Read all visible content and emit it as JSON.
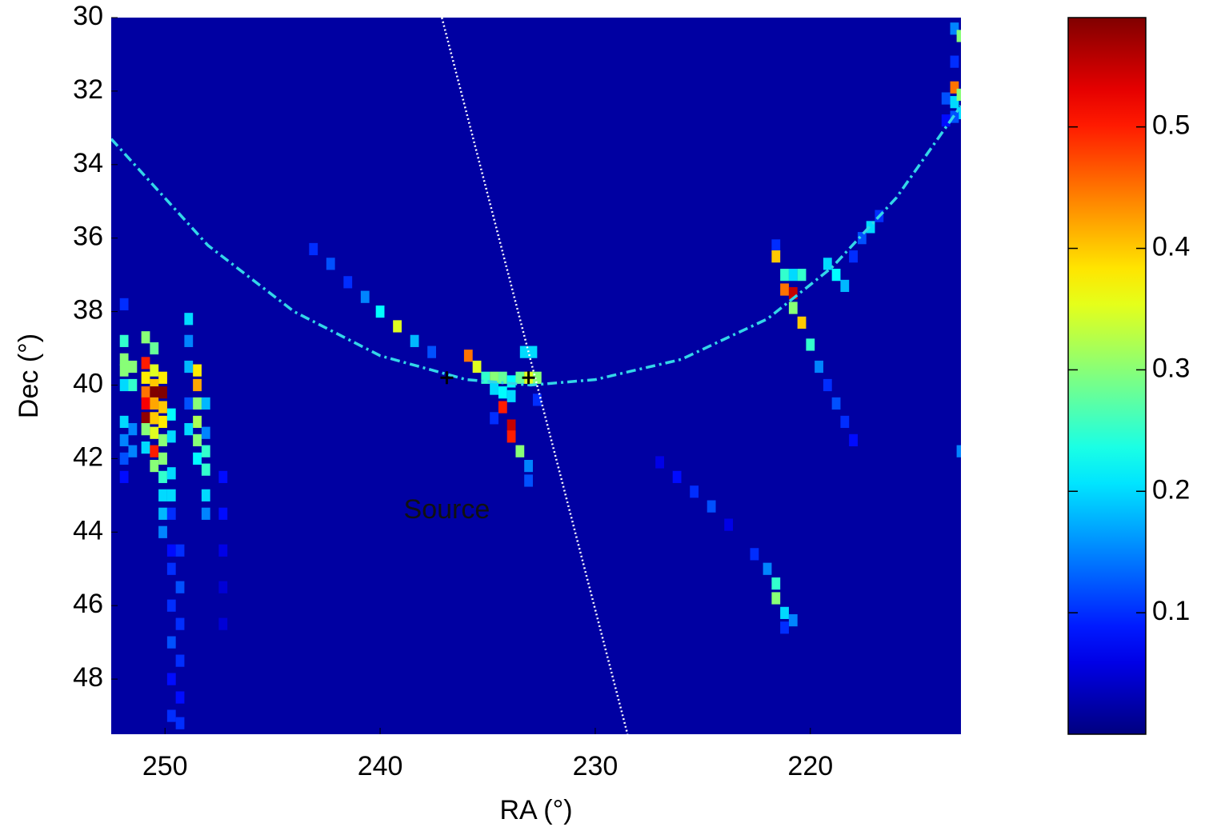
{
  "chart_data": {
    "type": "heatmap",
    "x_label": "RA (°)",
    "y_label": "Dec (°)",
    "xlim": [
      252.5,
      213
    ],
    "ylim": [
      30,
      49.5
    ],
    "xticks": [
      250,
      240,
      230,
      220
    ],
    "yticks": [
      30,
      32,
      34,
      36,
      38,
      40,
      42,
      44,
      46,
      48
    ],
    "clim": [
      0,
      0.59
    ],
    "cticks": [
      0.1,
      0.2,
      0.3,
      0.4,
      0.5
    ],
    "colormap": "jet",
    "background_value": 0.02,
    "cells": [
      [
        251.9,
        37.8,
        0.1
      ],
      [
        251.9,
        38.8,
        0.25
      ],
      [
        251.9,
        39.3,
        0.3
      ],
      [
        251.9,
        39.6,
        0.3
      ],
      [
        251.9,
        40,
        0.2
      ],
      [
        251.9,
        41,
        0.2
      ],
      [
        251.9,
        41.5,
        0.15
      ],
      [
        251.9,
        42,
        0.12
      ],
      [
        251.9,
        42.5,
        0.08
      ],
      [
        251.5,
        39.5,
        0.3
      ],
      [
        251.5,
        40,
        0.25
      ],
      [
        251.5,
        41.2,
        0.15
      ],
      [
        251.5,
        41.8,
        0.15
      ],
      [
        250.9,
        38.7,
        0.3
      ],
      [
        250.9,
        39.4,
        0.5
      ],
      [
        250.9,
        39.8,
        0.38
      ],
      [
        250.9,
        40.2,
        0.45
      ],
      [
        250.9,
        40.5,
        0.52
      ],
      [
        250.9,
        40.9,
        0.58
      ],
      [
        250.9,
        41.2,
        0.3
      ],
      [
        250.9,
        41.7,
        0.2
      ],
      [
        250.5,
        39,
        0.28
      ],
      [
        250.5,
        39.6,
        0.35
      ],
      [
        250.5,
        40,
        0.4
      ],
      [
        250.5,
        40.2,
        0.59
      ],
      [
        250.5,
        40.5,
        0.42
      ],
      [
        250.5,
        40.9,
        0.4
      ],
      [
        250.5,
        41.3,
        0.35
      ],
      [
        250.5,
        41.8,
        0.5
      ],
      [
        250.5,
        42.2,
        0.3
      ],
      [
        250.1,
        39.8,
        0.38
      ],
      [
        250.1,
        40.2,
        0.59
      ],
      [
        250.1,
        40.6,
        0.4
      ],
      [
        250.1,
        41,
        0.38
      ],
      [
        250.1,
        41.5,
        0.3
      ],
      [
        250.1,
        42,
        0.3
      ],
      [
        250.1,
        42.5,
        0.25
      ],
      [
        250.1,
        43,
        0.2
      ],
      [
        250.1,
        43.5,
        0.18
      ],
      [
        250.1,
        44,
        0.15
      ],
      [
        249.7,
        40.8,
        0.22
      ],
      [
        249.7,
        41.4,
        0.2
      ],
      [
        249.7,
        42.4,
        0.2
      ],
      [
        249.7,
        43,
        0.2
      ],
      [
        249.7,
        43.5,
        0.1
      ],
      [
        249.7,
        44.5,
        0.08
      ],
      [
        249.7,
        45,
        0.1
      ],
      [
        249.7,
        46,
        0.1
      ],
      [
        249.7,
        47,
        0.12
      ],
      [
        249.7,
        48,
        0.08
      ],
      [
        249.7,
        49,
        0.1
      ],
      [
        249.3,
        44.5,
        0.1
      ],
      [
        249.3,
        45.5,
        0.12
      ],
      [
        249.3,
        46.5,
        0.1
      ],
      [
        249.3,
        47.5,
        0.1
      ],
      [
        249.3,
        48.5,
        0.08
      ],
      [
        249.3,
        49.2,
        0.1
      ],
      [
        248.9,
        38.2,
        0.2
      ],
      [
        248.9,
        38.8,
        0.15
      ],
      [
        248.9,
        39.5,
        0.18
      ],
      [
        248.9,
        40.5,
        0.12
      ],
      [
        248.9,
        41.2,
        0.2
      ],
      [
        248.5,
        39.6,
        0.38
      ],
      [
        248.5,
        40,
        0.42
      ],
      [
        248.5,
        40.5,
        0.3
      ],
      [
        248.5,
        41,
        0.32
      ],
      [
        248.5,
        41.5,
        0.3
      ],
      [
        248.5,
        42,
        0.22
      ],
      [
        248.1,
        40.5,
        0.18
      ],
      [
        248.1,
        41.3,
        0.15
      ],
      [
        248.1,
        41.8,
        0.25
      ],
      [
        248.1,
        42.3,
        0.25
      ],
      [
        248.1,
        43,
        0.2
      ],
      [
        248.1,
        43.5,
        0.15
      ],
      [
        247.3,
        42.5,
        0.08
      ],
      [
        247.3,
        43.5,
        0.08
      ],
      [
        247.3,
        44.5,
        0.06
      ],
      [
        247.3,
        45.5,
        0.05
      ],
      [
        247.3,
        46.5,
        0.05
      ],
      [
        243.1,
        36.3,
        0.1
      ],
      [
        242.3,
        36.7,
        0.12
      ],
      [
        241.5,
        37.2,
        0.1
      ],
      [
        240.7,
        37.6,
        0.15
      ],
      [
        240,
        38,
        0.22
      ],
      [
        239.2,
        38.4,
        0.35
      ],
      [
        238.4,
        38.8,
        0.18
      ],
      [
        237.6,
        39.1,
        0.12
      ],
      [
        235.9,
        39.2,
        0.45
      ],
      [
        235.5,
        39.5,
        0.35
      ],
      [
        235.1,
        39.8,
        0.25
      ],
      [
        234.7,
        39.8,
        0.3
      ],
      [
        234.3,
        39.8,
        0.28
      ],
      [
        233.9,
        39.9,
        0.22
      ],
      [
        233.5,
        39.8,
        0.28
      ],
      [
        233.1,
        39.8,
        0.35
      ],
      [
        232.7,
        39.8,
        0.3
      ],
      [
        233.3,
        39.1,
        0.2
      ],
      [
        232.9,
        39.1,
        0.2
      ],
      [
        234.7,
        40.1,
        0.2
      ],
      [
        234.3,
        40.2,
        0.22
      ],
      [
        233.9,
        40.3,
        0.2
      ],
      [
        234.3,
        40.6,
        0.5
      ],
      [
        233.9,
        41.1,
        0.55
      ],
      [
        233.9,
        41.4,
        0.5
      ],
      [
        233.5,
        41.8,
        0.3
      ],
      [
        233.1,
        42.2,
        0.15
      ],
      [
        233.1,
        42.6,
        0.12
      ],
      [
        234.7,
        40.9,
        0.1
      ],
      [
        232.7,
        40.4,
        0.1
      ],
      [
        227,
        42.1,
        0.06
      ],
      [
        226.2,
        42.5,
        0.08
      ],
      [
        225.4,
        42.9,
        0.1
      ],
      [
        224.6,
        43.3,
        0.12
      ],
      [
        223.8,
        43.8,
        0.06
      ],
      [
        222.6,
        44.6,
        0.1
      ],
      [
        222,
        45,
        0.15
      ],
      [
        221.6,
        45.4,
        0.25
      ],
      [
        221.6,
        45.8,
        0.3
      ],
      [
        221.2,
        46.2,
        0.2
      ],
      [
        220.8,
        46.4,
        0.15
      ],
      [
        221.2,
        46.6,
        0.1
      ],
      [
        221.6,
        36.2,
        0.1
      ],
      [
        221.6,
        36.5,
        0.4
      ],
      [
        221.2,
        37,
        0.25
      ],
      [
        220.8,
        37,
        0.2
      ],
      [
        220.4,
        37,
        0.25
      ],
      [
        221.2,
        37.4,
        0.45
      ],
      [
        220.8,
        37.5,
        0.55
      ],
      [
        220.8,
        37.9,
        0.3
      ],
      [
        220.4,
        38.3,
        0.4
      ],
      [
        220,
        38.9,
        0.25
      ],
      [
        219.6,
        39.5,
        0.15
      ],
      [
        219.2,
        40,
        0.1
      ],
      [
        218.8,
        40.5,
        0.12
      ],
      [
        218.4,
        41,
        0.1
      ],
      [
        218,
        41.5,
        0.08
      ],
      [
        219.2,
        36.7,
        0.2
      ],
      [
        218.8,
        37,
        0.22
      ],
      [
        218.4,
        37.3,
        0.18
      ],
      [
        218,
        36.5,
        0.1
      ],
      [
        217.6,
        36,
        0.12
      ],
      [
        217.2,
        35.7,
        0.2
      ],
      [
        216.8,
        35.4,
        0.1
      ],
      [
        213.3,
        30.3,
        0.15
      ],
      [
        213,
        30.5,
        0.3
      ],
      [
        213.3,
        31.2,
        0.1
      ],
      [
        213.3,
        31.9,
        0.45
      ],
      [
        213.7,
        32.2,
        0.12
      ],
      [
        213.3,
        32.3,
        0.2
      ],
      [
        213,
        32.1,
        0.3
      ],
      [
        213,
        32.6,
        0.2
      ],
      [
        213.3,
        32.7,
        0.12
      ],
      [
        213.7,
        32.8,
        0.08
      ],
      [
        213,
        41.8,
        0.15
      ]
    ],
    "lines": [
      {
        "color": "#33d6e8",
        "style": "dashdot",
        "x": [
          252.5,
          248,
          244,
          240,
          236,
          233,
          230,
          226,
          222,
          219,
          216,
          213
        ],
        "y": [
          33.3,
          36.2,
          38,
          39.2,
          39.85,
          40,
          39.85,
          39.3,
          38.2,
          36.8,
          34.9,
          32.4
        ]
      },
      {
        "color": "#ffffff",
        "style": "dotted",
        "x": [
          237.13,
          228.5
        ],
        "y": [
          30,
          49.5
        ]
      }
    ],
    "markers": {
      "x": [
        236.9,
        233.1
      ],
      "y": [
        39.8,
        39.8
      ]
    },
    "annotation": {
      "text": "Source",
      "x": 236.9,
      "y": 43.43
    }
  }
}
